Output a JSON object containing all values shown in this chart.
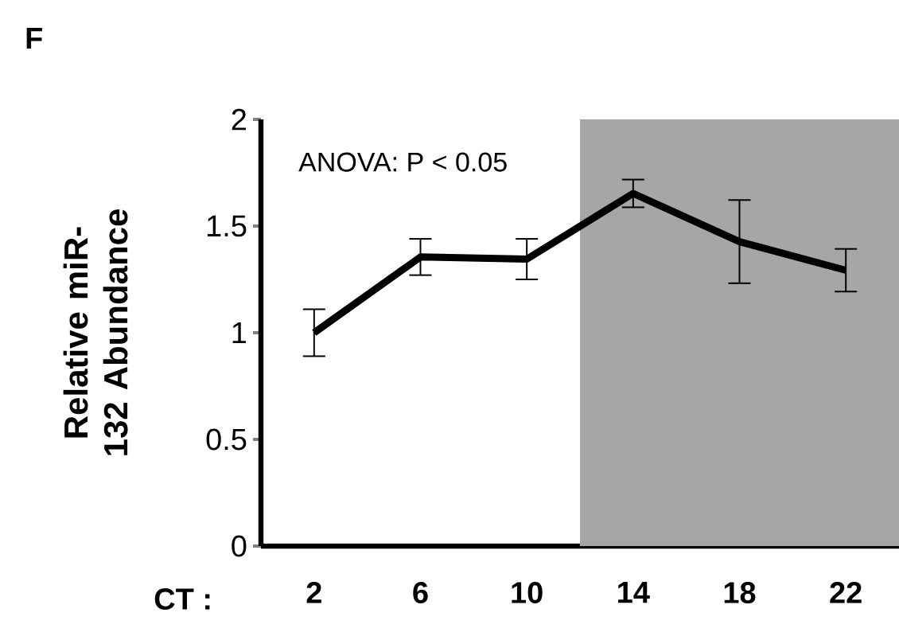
{
  "chart_data": {
    "type": "line",
    "title": "F",
    "xlabel": "CT :",
    "ylabel": "Relative miR-132 Abundance",
    "annotations": [
      "ANOVA: P < 0.05"
    ],
    "x": [
      2,
      6,
      10,
      14,
      18,
      22
    ],
    "series": [
      {
        "color": "#000000",
        "values": [
          1.0,
          1.355,
          1.345,
          1.653,
          1.427,
          1.293
        ],
        "errors": [
          0.11,
          0.085,
          0.095,
          0.065,
          0.195,
          0.1
        ]
      }
    ],
    "xlim": [
      0,
      24
    ],
    "xticks": [
      2,
      6,
      10,
      14,
      18,
      22
    ],
    "ylim": [
      0,
      2
    ],
    "yticks": [
      0,
      0.5,
      1,
      1.5,
      2
    ],
    "bands": [
      {
        "axis": "x",
        "from": 12,
        "to": 24,
        "color": "#a6a6a6"
      }
    ],
    "line_style": "solid",
    "grid": false,
    "legend": false
  }
}
